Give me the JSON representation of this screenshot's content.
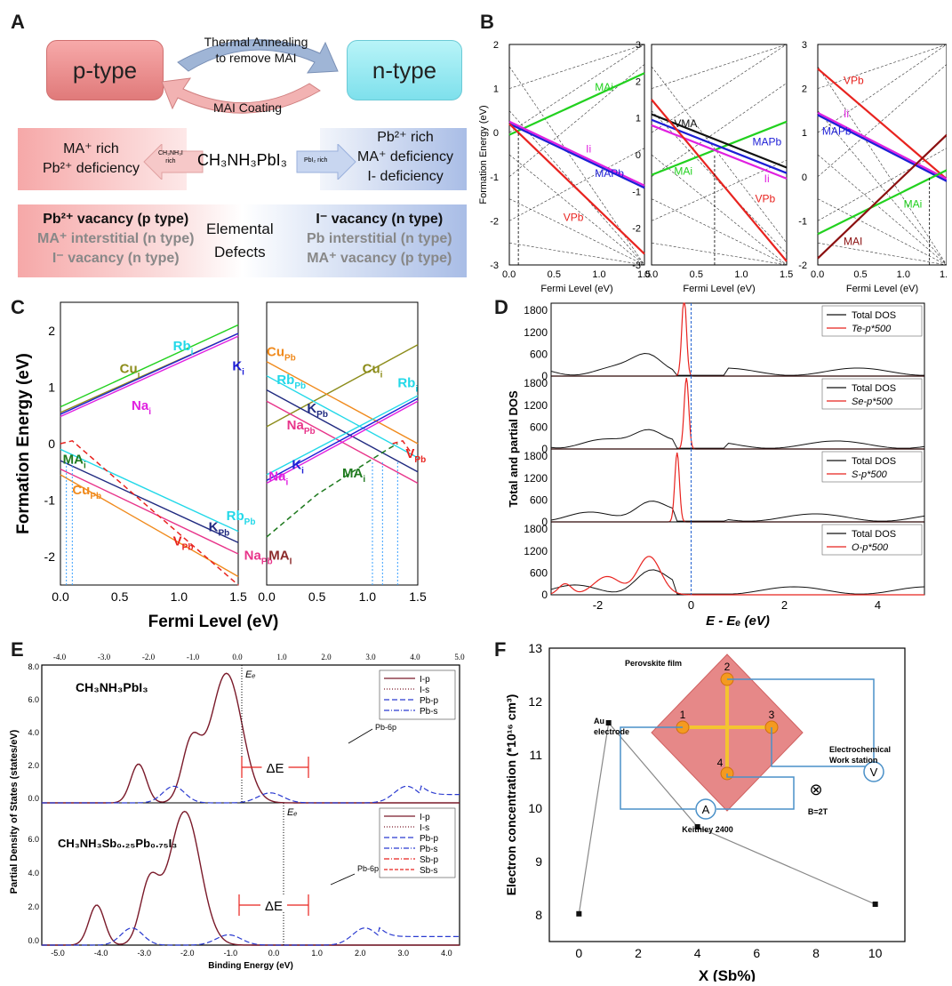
{
  "panels": {
    "a": "A",
    "b": "B",
    "c": "C",
    "d": "D",
    "e": "E",
    "f": "F"
  },
  "panelA": {
    "p_type": "p-type",
    "n_type": "n-type",
    "anneal_1": "Thermal Annealing",
    "anneal_2": "to remove MAI",
    "coating": "MAI Coating",
    "left_1": "MA⁺ rich",
    "left_2": "Pb²⁺ deficiency",
    "arrow_left_1": "CH₃NH₃I",
    "arrow_left_2": "rich",
    "center_formula": "CH₃NH₃PbI₃",
    "arrow_right": "PbI₂ rich",
    "right_1": "Pb²⁺ rich",
    "right_2": "MA⁺ deficiency",
    "right_3": "I- deficiency",
    "defect_left_1": "Pb²⁺ vacancy (p type)",
    "defect_left_2": "MA⁺ interstitial (n type)",
    "defect_left_3": "I⁻ vacancy (n type)",
    "elemental_1": "Elemental",
    "elemental_2": "Defects",
    "defect_right_1": "I⁻ vacancy (n type)",
    "defect_right_2": "Pb interstitial (n type)",
    "defect_right_3": "MA⁺ vacancy (p type)"
  },
  "colors": {
    "red": "#e8231f",
    "green": "#22d11f",
    "blue": "#1d1ed6",
    "magenta": "#e020e0",
    "black": "#111111",
    "darkred": "#8b1010",
    "cyan": "#22d8e8",
    "olive": "#8c8c1a",
    "orange": "#f08a1c",
    "pink": "#e8348a",
    "darkgreen": "#1f7a1f",
    "navy": "#202a80",
    "maroon": "#8b2a2a"
  },
  "chart_data": [
    {
      "id": "B1",
      "type": "line",
      "ylabel": "Formation Energy (eV)",
      "xlabel": "Fermi Level (eV)",
      "xlim": [
        0,
        1.5
      ],
      "ylim": [
        -3,
        2
      ],
      "xticks": [
        "0.0",
        "0.5",
        "1.0",
        "1.5"
      ],
      "yticks": [
        "-3",
        "-2",
        "-1",
        "0",
        "1",
        "2"
      ],
      "series": [
        {
          "name": "MAi",
          "color": "green",
          "x": [
            0,
            1.5
          ],
          "y": [
            -0.05,
            1.35
          ]
        },
        {
          "name": "Ii",
          "color": "magenta",
          "x": [
            0,
            1.5
          ],
          "y": [
            0.25,
            -1.2
          ]
        },
        {
          "name": "MAPb",
          "color": "blue",
          "x": [
            0,
            1.5
          ],
          "y": [
            0.2,
            -1.25
          ]
        },
        {
          "name": "VPb",
          "color": "red",
          "x": [
            0,
            1.5
          ],
          "y": [
            0.2,
            -2.75
          ]
        }
      ],
      "labels": [
        {
          "text": "MAi",
          "x": 0.95,
          "y": 0.95,
          "color": "green"
        },
        {
          "text": "Ii",
          "x": 0.85,
          "y": -0.45,
          "color": "magenta"
        },
        {
          "text": "MAPb",
          "x": 0.95,
          "y": -1.0,
          "color": "blue"
        },
        {
          "text": "VPb",
          "x": 0.6,
          "y": -2.0,
          "color": "red"
        }
      ],
      "vline": 0.1
    },
    {
      "id": "B2",
      "type": "line",
      "xlabel": "Fermi Level (eV)",
      "xlim": [
        0,
        1.5
      ],
      "ylim": [
        -3,
        3
      ],
      "xticks": [
        "0.0",
        "0.5",
        "1.0",
        "1.5"
      ],
      "yticks": [
        "-3",
        "-2",
        "-1",
        "0",
        "1",
        "2",
        "3"
      ],
      "series": [
        {
          "name": "MAi",
          "color": "green",
          "x": [
            0,
            1.5
          ],
          "y": [
            -0.55,
            0.9
          ]
        },
        {
          "name": "VMA",
          "color": "black",
          "x": [
            0,
            1.5
          ],
          "y": [
            1.1,
            -0.35
          ]
        },
        {
          "name": "MAPb",
          "color": "blue",
          "x": [
            0,
            1.5
          ],
          "y": [
            0.95,
            -0.5
          ]
        },
        {
          "name": "Ii",
          "color": "magenta",
          "x": [
            0,
            1.5
          ],
          "y": [
            0.8,
            -0.65
          ]
        },
        {
          "name": "VPb",
          "color": "red",
          "x": [
            0,
            1.5
          ],
          "y": [
            1.5,
            -2.9
          ]
        }
      ],
      "labels": [
        {
          "text": "VMA",
          "x": 0.25,
          "y": 0.75,
          "color": "black"
        },
        {
          "text": "MAi",
          "x": 0.25,
          "y": -0.55,
          "color": "green"
        },
        {
          "text": "MAPb",
          "x": 1.12,
          "y": 0.25,
          "color": "blue"
        },
        {
          "text": "Ii",
          "x": 1.25,
          "y": -0.75,
          "color": "magenta"
        },
        {
          "text": "VPb",
          "x": 1.15,
          "y": -1.3,
          "color": "red"
        }
      ],
      "vline": 0.7
    },
    {
      "id": "B3",
      "type": "line",
      "xlabel": "Fermi Level (eV)",
      "xlim": [
        0,
        1.5
      ],
      "ylim": [
        -2,
        3
      ],
      "xticks": [
        "0.0",
        "0.5",
        "1.0",
        "1.5"
      ],
      "yticks": [
        "-2",
        "-1",
        "0",
        "1",
        "2",
        "3"
      ],
      "series": [
        {
          "name": "VPb",
          "color": "red",
          "x": [
            0,
            1.5
          ],
          "y": [
            2.45,
            -0.05
          ]
        },
        {
          "name": "Ii",
          "color": "magenta",
          "x": [
            0,
            1.5
          ],
          "y": [
            1.45,
            -0.05
          ]
        },
        {
          "name": "MAPb",
          "color": "blue",
          "x": [
            0,
            1.5
          ],
          "y": [
            1.4,
            -0.1
          ]
        },
        {
          "name": "MAi",
          "color": "green",
          "x": [
            0,
            1.5
          ],
          "y": [
            -1.3,
            0.15
          ]
        },
        {
          "name": "MAI",
          "color": "darkred",
          "x": [
            0,
            1.5
          ],
          "y": [
            -1.85,
            0.95
          ]
        }
      ],
      "labels": [
        {
          "text": "VPb",
          "x": 0.3,
          "y": 2.1,
          "color": "red"
        },
        {
          "text": "Ii",
          "x": 0.3,
          "y": 1.35,
          "color": "magenta"
        },
        {
          "text": "MAPb",
          "x": 0.05,
          "y": 0.95,
          "color": "blue"
        },
        {
          "text": "MAi",
          "x": 1.0,
          "y": -0.7,
          "color": "green"
        },
        {
          "text": "MAI",
          "x": 0.3,
          "y": -1.55,
          "color": "darkred"
        }
      ],
      "vline": 1.3
    },
    {
      "id": "C1",
      "type": "line",
      "ylabel": "Formation Energy (eV)",
      "xlim": [
        0,
        1.5
      ],
      "ylim": [
        -2.5,
        2.5
      ],
      "xticks": [
        "0.0",
        "0.5",
        "1.0",
        "1.5"
      ],
      "yticks": [
        "-2",
        "-1",
        "0",
        "1",
        "2"
      ],
      "series": [
        {
          "name": "Cu_i",
          "color": "olive",
          "x": [
            0,
            1.5
          ],
          "y": [
            0.55,
            1.95
          ]
        },
        {
          "name": "Rb_i",
          "color": "green",
          "x": [
            0,
            1.5
          ],
          "y": [
            0.65,
            2.1
          ]
        },
        {
          "name": "K_i",
          "color": "blue",
          "x": [
            0,
            1.5
          ],
          "y": [
            0.52,
            1.95
          ]
        },
        {
          "name": "Na_i",
          "color": "magenta",
          "x": [
            0,
            1.5
          ],
          "y": [
            0.48,
            1.9
          ]
        },
        {
          "name": "Rb_Pb",
          "color": "cyan",
          "x": [
            0,
            1.5
          ],
          "y": [
            -0.1,
            -1.55
          ]
        },
        {
          "name": "K_Pb",
          "color": "navy",
          "x": [
            0,
            1.5
          ],
          "y": [
            -0.3,
            -1.75
          ]
        },
        {
          "name": "Na_Pb",
          "color": "pink",
          "x": [
            0,
            1.5
          ],
          "y": [
            -0.45,
            -1.95
          ]
        },
        {
          "name": "Cu_Pb",
          "color": "orange",
          "x": [
            0,
            1.5
          ],
          "y": [
            -0.55,
            -2.35
          ]
        }
      ],
      "labels": [
        {
          "text": "Cu",
          "sub": "i",
          "x": 0.5,
          "y": 1.25,
          "color": "olive"
        },
        {
          "text": "Rb",
          "sub": "i",
          "x": 0.95,
          "y": 1.65,
          "color": "cyan"
        },
        {
          "text": "K",
          "sub": "i",
          "x": 1.45,
          "y": 1.3,
          "color": "blue"
        },
        {
          "text": "Na",
          "sub": "i",
          "x": 0.6,
          "y": 0.6,
          "color": "magenta"
        },
        {
          "text": "MA",
          "sub": "i",
          "x": 0.02,
          "y": -0.35,
          "color": "darkgreen"
        },
        {
          "text": "Cu",
          "sub": "Pb",
          "x": 0.1,
          "y": -0.9,
          "color": "orange"
        },
        {
          "text": "Rb",
          "sub": "Pb",
          "x": 1.4,
          "y": -1.35,
          "color": "cyan"
        },
        {
          "text": "K",
          "sub": "Pb",
          "x": 1.25,
          "y": -1.55,
          "color": "navy"
        },
        {
          "text": "V",
          "sub": "Pb",
          "x": 0.95,
          "y": -1.8,
          "color": "red"
        },
        {
          "text": "Na",
          "sub": "Pb",
          "x": 1.55,
          "y": -2.05,
          "color": "pink"
        }
      ],
      "dashed": [
        {
          "color": "red",
          "x": [
            0,
            0.1,
            1.5
          ],
          "y": [
            0,
            0.05,
            -2.5
          ]
        }
      ],
      "vlines": [
        0.05,
        0.1
      ]
    },
    {
      "id": "C2",
      "type": "line",
      "xlabel": "Fermi Level (eV)",
      "xlim": [
        0,
        1.5
      ],
      "ylim": [
        -2.5,
        2.5
      ],
      "xticks": [
        "0.0",
        "0.5",
        "1.0",
        "1.5"
      ],
      "series": [
        {
          "name": "Cu_i",
          "color": "olive",
          "x": [
            0,
            1.5
          ],
          "y": [
            0.3,
            1.75
          ]
        },
        {
          "name": "Cu_Pb",
          "color": "orange",
          "x": [
            0,
            1.5
          ],
          "y": [
            1.45,
            0.0
          ]
        },
        {
          "name": "Rb_Pb",
          "color": "cyan",
          "x": [
            0,
            1.5
          ],
          "y": [
            1.2,
            -0.25
          ]
        },
        {
          "name": "K_Pb",
          "color": "navy",
          "x": [
            0,
            1.5
          ],
          "y": [
            0.95,
            -0.5
          ]
        },
        {
          "name": "Na_Pb",
          "color": "pink",
          "x": [
            0,
            1.5
          ],
          "y": [
            0.75,
            -0.7
          ]
        },
        {
          "name": "Rb_i",
          "color": "cyan",
          "x": [
            0,
            1.5
          ],
          "y": [
            -0.55,
            0.85
          ]
        },
        {
          "name": "K_i",
          "color": "blue",
          "x": [
            0,
            1.5
          ],
          "y": [
            -0.65,
            0.8
          ]
        },
        {
          "name": "Na_i",
          "color": "magenta",
          "x": [
            0,
            1.5
          ],
          "y": [
            -0.7,
            0.75
          ]
        }
      ],
      "labels": [
        {
          "text": "Cu",
          "sub": "Pb",
          "x": 0.0,
          "y": 1.55,
          "color": "orange"
        },
        {
          "text": "Cu",
          "sub": "i",
          "x": 0.95,
          "y": 1.25,
          "color": "olive"
        },
        {
          "text": "Rb",
          "sub": "Pb",
          "x": 0.1,
          "y": 1.05,
          "color": "cyan"
        },
        {
          "text": "Rb",
          "sub": "i",
          "x": 1.3,
          "y": 1.0,
          "color": "cyan"
        },
        {
          "text": "K",
          "sub": "Pb",
          "x": 0.4,
          "y": 0.55,
          "color": "navy"
        },
        {
          "text": "Na",
          "sub": "Pb",
          "x": 0.2,
          "y": 0.25,
          "color": "pink"
        },
        {
          "text": "K",
          "sub": "i",
          "x": 0.25,
          "y": -0.45,
          "color": "blue"
        },
        {
          "text": "Na",
          "sub": "i",
          "x": 0.02,
          "y": -0.65,
          "color": "magenta"
        },
        {
          "text": "MA",
          "sub": "i",
          "x": 0.75,
          "y": -0.6,
          "color": "darkgreen"
        },
        {
          "text": "V",
          "sub": "Pb",
          "x": 1.38,
          "y": -0.25,
          "color": "red"
        },
        {
          "text": "MA",
          "sub": "I",
          "x": 0.02,
          "y": -2.05,
          "color": "maroon"
        }
      ],
      "dashed": [
        {
          "color": "darkgreen",
          "x": [
            0,
            0.5,
            1.2,
            1.3
          ],
          "y": [
            -1.65,
            -0.9,
            -0.1,
            0
          ]
        },
        {
          "color": "red",
          "x": [
            1.25,
            1.35,
            1.45
          ],
          "y": [
            0,
            0.05,
            -0.2
          ]
        }
      ],
      "vlines": [
        1.05,
        1.15,
        1.3
      ]
    },
    {
      "id": "D",
      "type": "line",
      "ylabel": "Total and partial DOS",
      "xlabel": "E - Eₑ (eV)",
      "xlim": [
        -3,
        5
      ],
      "ylim": [
        0,
        2000
      ],
      "xticks": [
        "-2",
        "0",
        "2",
        "4"
      ],
      "yticks": [
        "0",
        "600",
        "1200",
        "1800"
      ],
      "subpanels": [
        {
          "legend": [
            "Total DOS",
            "Te-p*500"
          ],
          "peak": 2200,
          "peakx": -0.15
        },
        {
          "legend": [
            "Total DOS",
            "Se-p*500"
          ],
          "peak": 1950,
          "peakx": -0.1
        },
        {
          "legend": [
            "Total DOS",
            "S-p*500"
          ],
          "peak": 1900,
          "peakx": -0.3
        },
        {
          "legend": [
            "Total DOS",
            "O-p*500"
          ],
          "peak": 1050,
          "peakx": -0.9
        }
      ]
    },
    {
      "id": "E",
      "type": "line",
      "ylabel": "Partial Density of States (states/eV)",
      "xlabel": "Binding Energy (eV)",
      "xlim": [
        -5.5,
        4.0
      ],
      "top_xticks": [
        "-4.0",
        "-3.0",
        "-2.0",
        "-1.0",
        "0.0",
        "1.0",
        "2.0",
        "3.0",
        "4.0",
        "5.0"
      ],
      "bottom_xticks": [
        "-5.0",
        "-4.0",
        "-3.0",
        "-2.0",
        "-1.0",
        "0.0",
        "1.0",
        "2.0",
        "3.0",
        "4.0"
      ],
      "yticks": [
        "0.0",
        "2.0",
        "4.0",
        "6.0",
        "8.0"
      ],
      "top_title": "CH₃NH₃PbI₃",
      "bottom_title": "CH₃NH₃Sb₀.₂₅Pb₀.₇₅I₃",
      "top_legend": [
        "I-p",
        "I-s",
        "Pb-p",
        "Pb-s"
      ],
      "bottom_legend": [
        "I-p",
        "I-s",
        "Pb-p",
        "Pb-s",
        "Sb-p",
        "Sb-s"
      ],
      "ef": "Eₑ",
      "delta": "ΔE",
      "pb6p": "Pb-6p"
    },
    {
      "id": "F",
      "type": "line",
      "xlabel": "X (Sb%)",
      "ylabel": "Electron concentration (*10¹⁶ cm³)",
      "xlim": [
        -1,
        11
      ],
      "ylim": [
        7.5,
        13
      ],
      "xticks": [
        "0",
        "2",
        "4",
        "6",
        "8",
        "10"
      ],
      "yticks": [
        "8",
        "9",
        "10",
        "11",
        "12",
        "13"
      ],
      "x": [
        0,
        1,
        4,
        10
      ],
      "y": [
        8.02,
        11.6,
        9.65,
        8.2
      ],
      "inset": {
        "film": "Perovskite film",
        "au_1": "Au",
        "au_2": "electrode",
        "ec_1": "Electrochemical",
        "ec_2": "Work station",
        "keithley": "Keithley 2400",
        "b": "B=2T",
        "v": "V",
        "a": "A",
        "n1": "1",
        "n2": "2",
        "n3": "3",
        "n4": "4"
      }
    }
  ]
}
